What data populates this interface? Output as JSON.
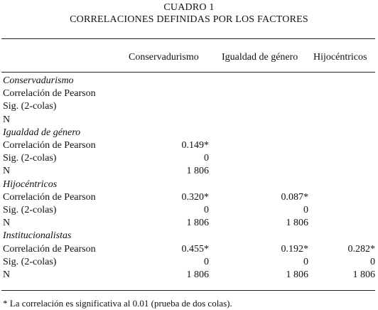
{
  "table": {
    "label": "CUADRO 1",
    "title": "CORRELACIONES DEFINIDAS POR LOS FACTORES",
    "columns": [
      "Conservadurismo",
      "Igualdad de género",
      "Hijocéntricos"
    ],
    "rows": [
      {
        "label": "Conservadurismo",
        "section": true,
        "values": [
          "",
          "",
          ""
        ]
      },
      {
        "label": "Correlación de Pearson",
        "section": false,
        "values": [
          "",
          "",
          ""
        ]
      },
      {
        "label": "Sig. (2-colas)",
        "section": false,
        "values": [
          "",
          "",
          ""
        ]
      },
      {
        "label": "N",
        "section": false,
        "values": [
          "",
          "",
          ""
        ]
      },
      {
        "label": "Igualdad de género",
        "section": true,
        "values": [
          "",
          "",
          ""
        ]
      },
      {
        "label": "Correlación de Pearson",
        "section": false,
        "values": [
          "0.149*",
          "",
          ""
        ]
      },
      {
        "label": "Sig. (2-colas)",
        "section": false,
        "values": [
          "0",
          "",
          ""
        ]
      },
      {
        "label": "N",
        "section": false,
        "values": [
          "1 806",
          "",
          ""
        ]
      },
      {
        "label": "Hijocéntricos",
        "section": true,
        "values": [
          "",
          "",
          ""
        ]
      },
      {
        "label": "Correlación de Pearson",
        "section": false,
        "values": [
          "0.320*",
          "0.087*",
          ""
        ]
      },
      {
        "label": "Sig. (2-colas)",
        "section": false,
        "values": [
          "0",
          "0",
          ""
        ]
      },
      {
        "label": "N",
        "section": false,
        "values": [
          "1 806",
          "1 806",
          ""
        ]
      },
      {
        "label": "Institucionalistas",
        "section": true,
        "values": [
          "",
          "",
          ""
        ]
      },
      {
        "label": "Correlación de Pearson",
        "section": false,
        "values": [
          "0.455*",
          "0.192*",
          "0.282*"
        ]
      },
      {
        "label": "Sig. (2-colas)",
        "section": false,
        "values": [
          "0",
          "0",
          "0"
        ]
      },
      {
        "label": "N",
        "section": false,
        "values": [
          "1 806",
          "1 806",
          "1 806"
        ]
      }
    ],
    "footnote": "* La correlación es significativa al 0.01 (prueba de dos colas)."
  }
}
